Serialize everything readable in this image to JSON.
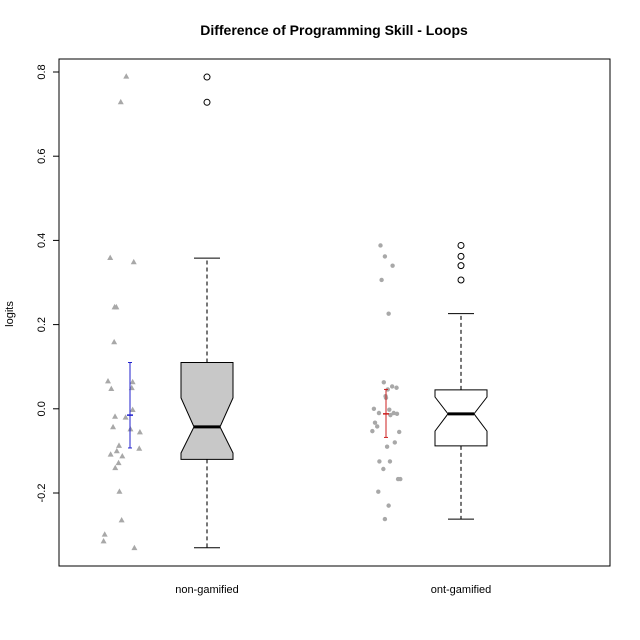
{
  "chart_data": {
    "type": "boxplot",
    "title": "Difference of Programming Skill - Loops",
    "ylabel": "logits",
    "xlabel": "",
    "ylim": [
      -0.38,
      0.83
    ],
    "yticks": [
      -0.2,
      0.0,
      0.2,
      0.4,
      0.6,
      0.8
    ],
    "ytick_labels": [
      "-0.2",
      "0.0",
      "0.2",
      "0.4",
      "0.6",
      "0.8"
    ],
    "grid": false,
    "categories": [
      "non-gamified",
      "ont-gamified"
    ],
    "series": [
      {
        "category": "non-gamified",
        "box_color": "#c8c8c8",
        "jitter_marker": "triangle",
        "jitter_color": "#a8a8a8",
        "errorbar_color": "#1f1fcc",
        "whisker_low": -0.33,
        "q1": -0.12,
        "median": -0.043,
        "q3": 0.11,
        "whisker_high": 0.358,
        "notch_low": -0.105,
        "notch_high": 0.026,
        "outliers": [
          0.788,
          0.728
        ],
        "mean": -0.015,
        "ci_low": -0.093,
        "ci_high": 0.11,
        "points": [
          {
            "j": -0.17,
            "v": 0.79
          },
          {
            "j": -0.42,
            "v": 0.729
          },
          {
            "j": -0.9,
            "v": 0.359
          },
          {
            "j": 0.17,
            "v": 0.349
          },
          {
            "j": -0.7,
            "v": 0.242
          },
          {
            "j": -0.62,
            "v": 0.242
          },
          {
            "j": -0.72,
            "v": 0.159
          },
          {
            "j": -1.0,
            "v": 0.066
          },
          {
            "j": 0.12,
            "v": 0.064
          },
          {
            "j": -0.85,
            "v": 0.048
          },
          {
            "j": 0.08,
            "v": 0.05
          },
          {
            "j": 0.12,
            "v": -0.002
          },
          {
            "j": -0.68,
            "v": -0.018
          },
          {
            "j": -0.2,
            "v": -0.02
          },
          {
            "j": -0.77,
            "v": -0.043
          },
          {
            "j": 0.02,
            "v": -0.048
          },
          {
            "j": 0.45,
            "v": -0.055
          },
          {
            "j": -0.5,
            "v": -0.087
          },
          {
            "j": 0.42,
            "v": -0.094
          },
          {
            "j": -0.6,
            "v": -0.1
          },
          {
            "j": -0.88,
            "v": -0.108
          },
          {
            "j": -0.35,
            "v": -0.112
          },
          {
            "j": -0.52,
            "v": -0.128
          },
          {
            "j": -0.67,
            "v": -0.14
          },
          {
            "j": -0.48,
            "v": -0.196
          },
          {
            "j": -0.38,
            "v": -0.264
          },
          {
            "j": -1.15,
            "v": -0.298
          },
          {
            "j": -1.2,
            "v": -0.314
          },
          {
            "j": 0.2,
            "v": -0.33
          }
        ]
      },
      {
        "category": "ont-gamified",
        "box_color": "#ffffff",
        "jitter_marker": "circle",
        "jitter_color": "#a8a8a8",
        "errorbar_color": "#cc1f1f",
        "whisker_low": -0.262,
        "q1": -0.088,
        "median": -0.012,
        "q3": 0.045,
        "whisker_high": 0.226,
        "notch_low": -0.053,
        "notch_high": 0.028,
        "outliers": [
          0.388,
          0.362,
          0.34,
          0.306
        ],
        "mean": -0.012,
        "ci_low": -0.068,
        "ci_high": 0.046,
        "points": [
          {
            "j": -0.25,
            "v": 0.388
          },
          {
            "j": -0.05,
            "v": 0.362
          },
          {
            "j": 0.3,
            "v": 0.34
          },
          {
            "j": -0.2,
            "v": 0.306
          },
          {
            "j": 0.12,
            "v": 0.226
          },
          {
            "j": -0.1,
            "v": 0.063
          },
          {
            "j": 0.48,
            "v": 0.05
          },
          {
            "j": 0.28,
            "v": 0.053
          },
          {
            "j": 0.08,
            "v": 0.046
          },
          {
            "j": -0.02,
            "v": 0.03
          },
          {
            "j": 0.0,
            "v": 0.026
          },
          {
            "j": -0.55,
            "v": 0.0
          },
          {
            "j": 0.15,
            "v": -0.002
          },
          {
            "j": -0.32,
            "v": -0.01
          },
          {
            "j": 0.2,
            "v": -0.015
          },
          {
            "j": 0.5,
            "v": -0.012
          },
          {
            "j": 0.35,
            "v": -0.01
          },
          {
            "j": -0.4,
            "v": -0.042
          },
          {
            "j": -0.5,
            "v": -0.033
          },
          {
            "j": -0.62,
            "v": -0.053
          },
          {
            "j": 0.6,
            "v": -0.055
          },
          {
            "j": 0.4,
            "v": -0.08
          },
          {
            "j": 0.05,
            "v": -0.09
          },
          {
            "j": -0.3,
            "v": -0.125
          },
          {
            "j": 0.18,
            "v": -0.125
          },
          {
            "j": -0.12,
            "v": -0.143
          },
          {
            "j": 0.55,
            "v": -0.167
          },
          {
            "j": 0.65,
            "v": -0.167
          },
          {
            "j": -0.35,
            "v": -0.197
          },
          {
            "j": 0.12,
            "v": -0.23
          },
          {
            "j": -0.05,
            "v": -0.262
          }
        ]
      }
    ]
  }
}
